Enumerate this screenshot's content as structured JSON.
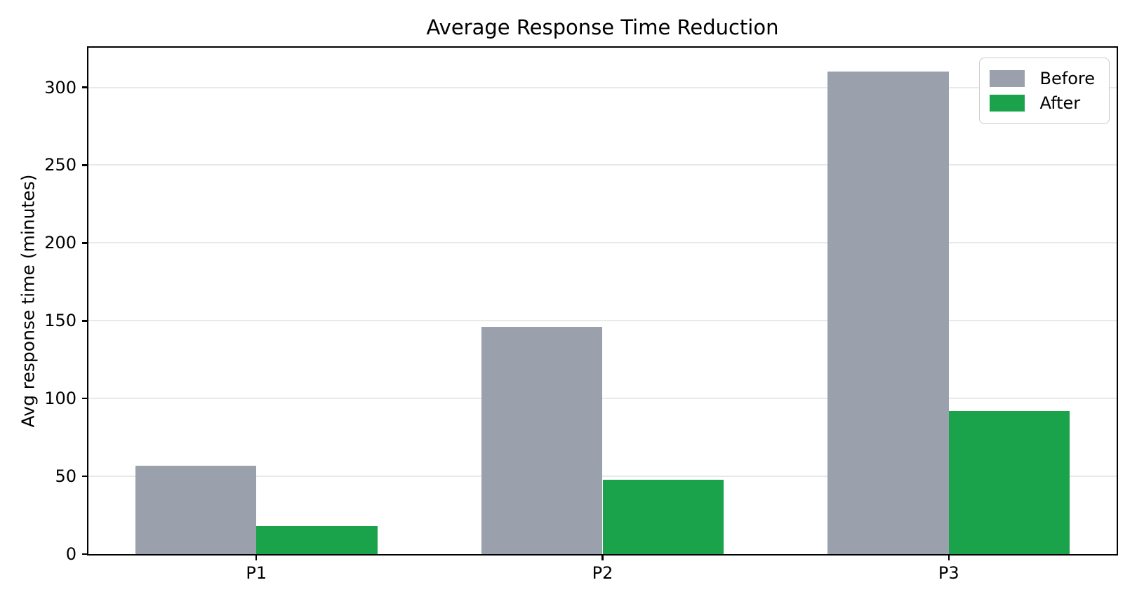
{
  "chart_data": {
    "type": "bar",
    "title": "Average Response Time Reduction",
    "xlabel": "",
    "ylabel": "Avg response time (minutes)",
    "categories": [
      "P1",
      "P2",
      "P3"
    ],
    "series": [
      {
        "name": "Before",
        "color": "#9aa1ac",
        "values": [
          57,
          146,
          310
        ]
      },
      {
        "name": "After",
        "color": "#1aa34a",
        "values": [
          18,
          48,
          92
        ]
      }
    ],
    "ylim": [
      0,
      325.5
    ],
    "yticks": [
      0,
      50,
      100,
      150,
      200,
      250,
      300
    ],
    "grid": "horizontal gridlines on",
    "legend_position": "upper right",
    "bar_width": 0.35
  },
  "colors": {
    "grid": "#e9e9e9",
    "spine": "#000000",
    "background": "#ffffff",
    "legend_border": "#cccccc",
    "before": "#9aa1ac",
    "after": "#1aa34a"
  }
}
